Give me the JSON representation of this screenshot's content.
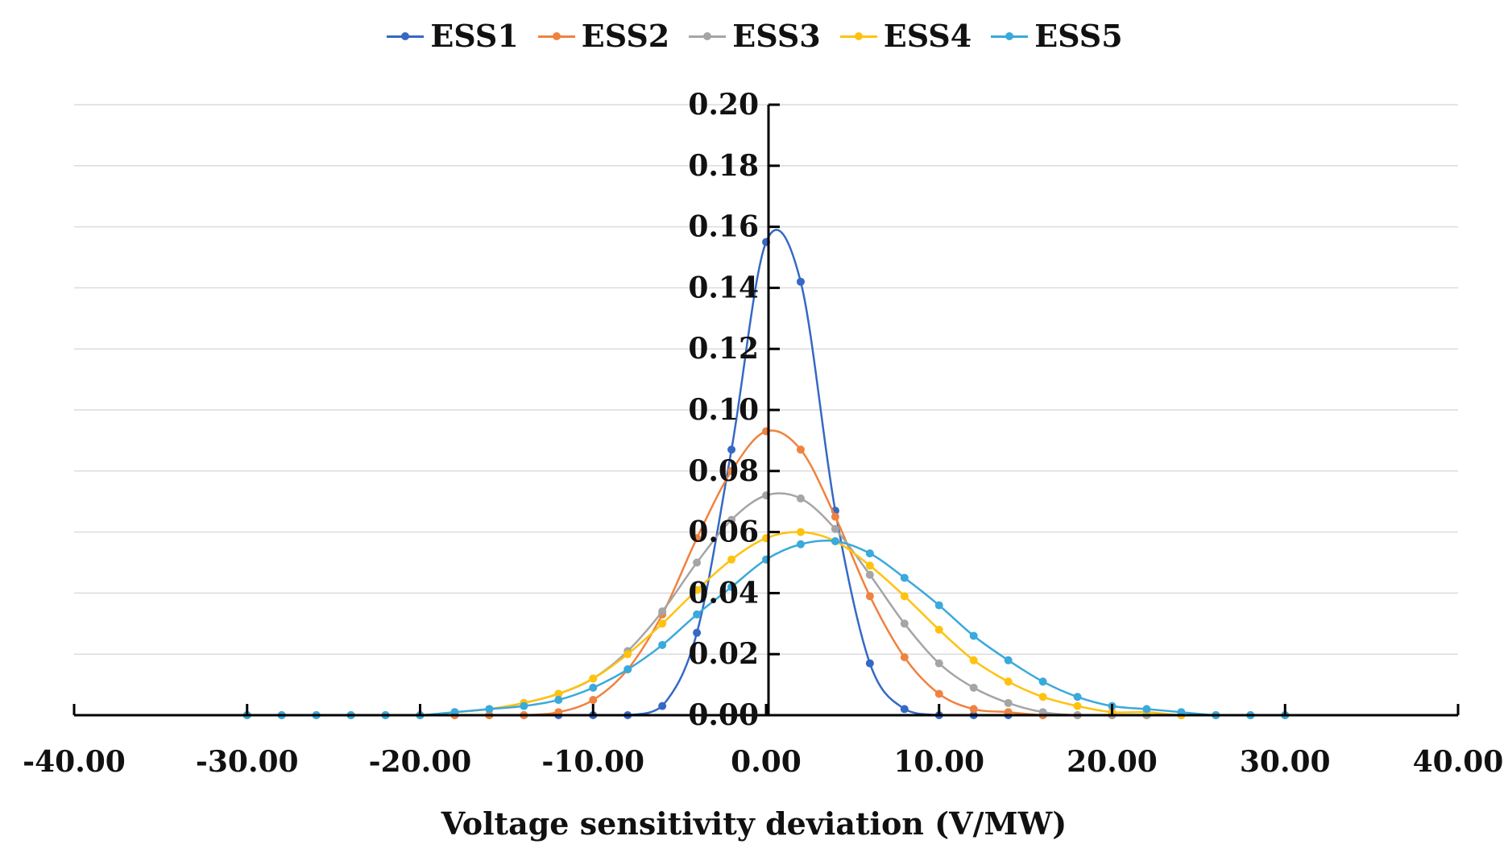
{
  "chart_data": {
    "type": "line",
    "title": "",
    "xlabel": "Voltage sensitivity deviation (V/MW)",
    "ylabel": "",
    "xlim": [
      -40,
      40
    ],
    "ylim": [
      0,
      0.2
    ],
    "x_ticks": [
      -40,
      -30,
      -20,
      -10,
      0,
      10,
      20,
      30,
      40
    ],
    "x_tick_labels": [
      "-40.00",
      "-30.00",
      "-20.00",
      "-10.00",
      "0.00",
      "10.00",
      "20.00",
      "30.00",
      "40.00"
    ],
    "y_ticks": [
      0,
      0.02,
      0.04,
      0.06,
      0.08,
      0.1,
      0.12,
      0.14,
      0.16,
      0.18,
      0.2
    ],
    "y_tick_labels": [
      "0.00",
      "0.02",
      "0.04",
      "0.06",
      "0.08",
      "0.10",
      "0.12",
      "0.14",
      "0.16",
      "0.18",
      "0.20"
    ],
    "grid": true,
    "legend_position": "top-center",
    "x": [
      -30,
      -28,
      -26,
      -24,
      -22,
      -20,
      -18,
      -16,
      -14,
      -12,
      -10,
      -8,
      -6,
      -4,
      -2,
      0,
      2,
      4,
      6,
      8,
      10,
      12,
      14,
      16,
      18,
      20,
      22,
      24,
      26,
      28,
      30
    ],
    "series": [
      {
        "name": "ESS1",
        "color": "#3569c4",
        "values": [
          0,
          0,
          0,
          0,
          0,
          0,
          0,
          0,
          0,
          0,
          0,
          0,
          0.003,
          0.027,
          0.087,
          0.155,
          0.142,
          0.067,
          0.017,
          0.002,
          0,
          0,
          0,
          0,
          0,
          0,
          0,
          0,
          0,
          0,
          0
        ]
      },
      {
        "name": "ESS2",
        "color": "#f0823f",
        "values": [
          0,
          0,
          0,
          0,
          0,
          0,
          0,
          0,
          0,
          0.001,
          0.005,
          0.015,
          0.033,
          0.058,
          0.08,
          0.093,
          0.087,
          0.065,
          0.039,
          0.019,
          0.007,
          0.002,
          0.001,
          0,
          0,
          0,
          0,
          0,
          0,
          0,
          0
        ]
      },
      {
        "name": "ESS3",
        "color": "#a5a5a5",
        "values": [
          0,
          0,
          0,
          0,
          0,
          0,
          0.001,
          0.002,
          0.004,
          0.007,
          0.012,
          0.021,
          0.034,
          0.05,
          0.064,
          0.072,
          0.071,
          0.061,
          0.046,
          0.03,
          0.017,
          0.009,
          0.004,
          0.001,
          0,
          0,
          0,
          0,
          0,
          0,
          0
        ]
      },
      {
        "name": "ESS4",
        "color": "#ffc20e",
        "values": [
          0,
          0,
          0,
          0,
          0,
          0,
          0.001,
          0.002,
          0.004,
          0.007,
          0.012,
          0.02,
          0.03,
          0.041,
          0.051,
          0.058,
          0.06,
          0.057,
          0.049,
          0.039,
          0.028,
          0.018,
          0.011,
          0.006,
          0.003,
          0.001,
          0.001,
          0,
          0,
          0,
          0
        ]
      },
      {
        "name": "ESS5",
        "color": "#3aa9dc",
        "values": [
          0,
          0,
          0,
          0,
          0,
          0,
          0.001,
          0.002,
          0.003,
          0.005,
          0.009,
          0.015,
          0.023,
          0.033,
          0.042,
          0.051,
          0.056,
          0.057,
          0.053,
          0.045,
          0.036,
          0.026,
          0.018,
          0.011,
          0.006,
          0.003,
          0.002,
          0.001,
          0,
          0,
          0
        ]
      }
    ]
  }
}
